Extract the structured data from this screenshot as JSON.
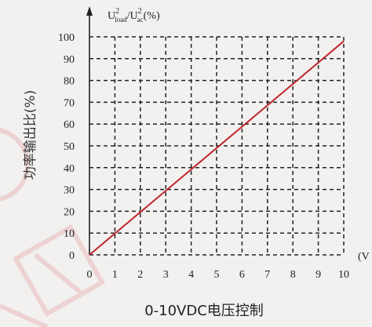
{
  "chart_data": {
    "type": "line",
    "title": "",
    "caption": "0-10VDC电压控制",
    "ylabel": "功率输出比(%)",
    "ylabel_top": {
      "u1": "U",
      "sup1": "2",
      "sub1": "load",
      "slash": "/",
      "u2": "U",
      "sup2": "2",
      "sub2": "ac",
      "unit": "(%)"
    },
    "xlabel": "(V",
    "xlim": [
      0,
      10
    ],
    "ylim": [
      0,
      100
    ],
    "xticks": [
      "0",
      "1",
      "2",
      "3",
      "4",
      "5",
      "6",
      "7",
      "8",
      "9",
      "10"
    ],
    "yticks": [
      "0",
      "10",
      "20",
      "30",
      "40",
      "50",
      "60",
      "70",
      "80",
      "90",
      "100"
    ],
    "grid": true,
    "series": [
      {
        "x": [
          0,
          10
        ],
        "y": [
          0,
          98
        ]
      }
    ],
    "colors": {
      "line": "#c0262d",
      "grid": "#222222",
      "watermark": "#e8b9b9"
    }
  }
}
